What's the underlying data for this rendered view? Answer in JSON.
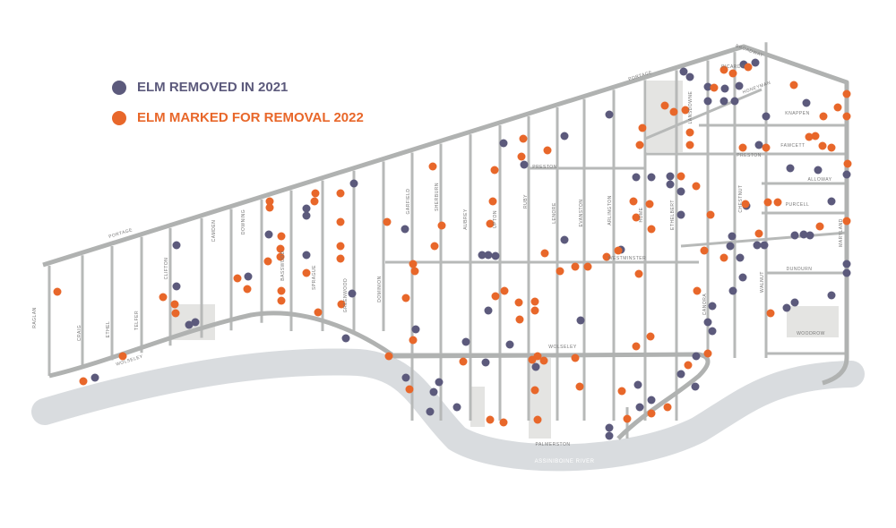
{
  "legend": {
    "items": [
      {
        "label": "ELM REMOVED IN 2021",
        "color": "#5c5a7c"
      },
      {
        "label": "ELM MARKED FOR REMOVAL 2022",
        "color": "#e8672a"
      }
    ]
  },
  "streets": [
    "PORTAGE",
    "PORTAGE",
    "BROADWAY",
    "PICARDY",
    "HONEYMAN",
    "KNAPPEN",
    "FAWCETT",
    "ALLOWAY",
    "PRESTON",
    "PRESTON",
    "PURCELL",
    "WESTMINSTER",
    "DUNDURN",
    "WOODROW",
    "WOLSELEY",
    "WOLSELEY",
    "PALMERSTON",
    "RAGLAN",
    "CRAIG",
    "ETHEL",
    "TELFER",
    "CLIFTON",
    "CAMDEN",
    "DOWNING",
    "BASSWOOD",
    "SPRAGUE",
    "GREENWOOD",
    "DOMINION",
    "GARFIELD",
    "SHERBURN",
    "AUBREY",
    "UPTON",
    "RUBY",
    "LENORE",
    "EVANSTON",
    "ARLINGTON",
    "HOME",
    "ETHELBERT",
    "LANSDOWNE",
    "CHESTNUT",
    "CANORA",
    "WALNUT",
    "MARYLAND"
  ],
  "river": "ASSINIBOINE RIVER"
}
